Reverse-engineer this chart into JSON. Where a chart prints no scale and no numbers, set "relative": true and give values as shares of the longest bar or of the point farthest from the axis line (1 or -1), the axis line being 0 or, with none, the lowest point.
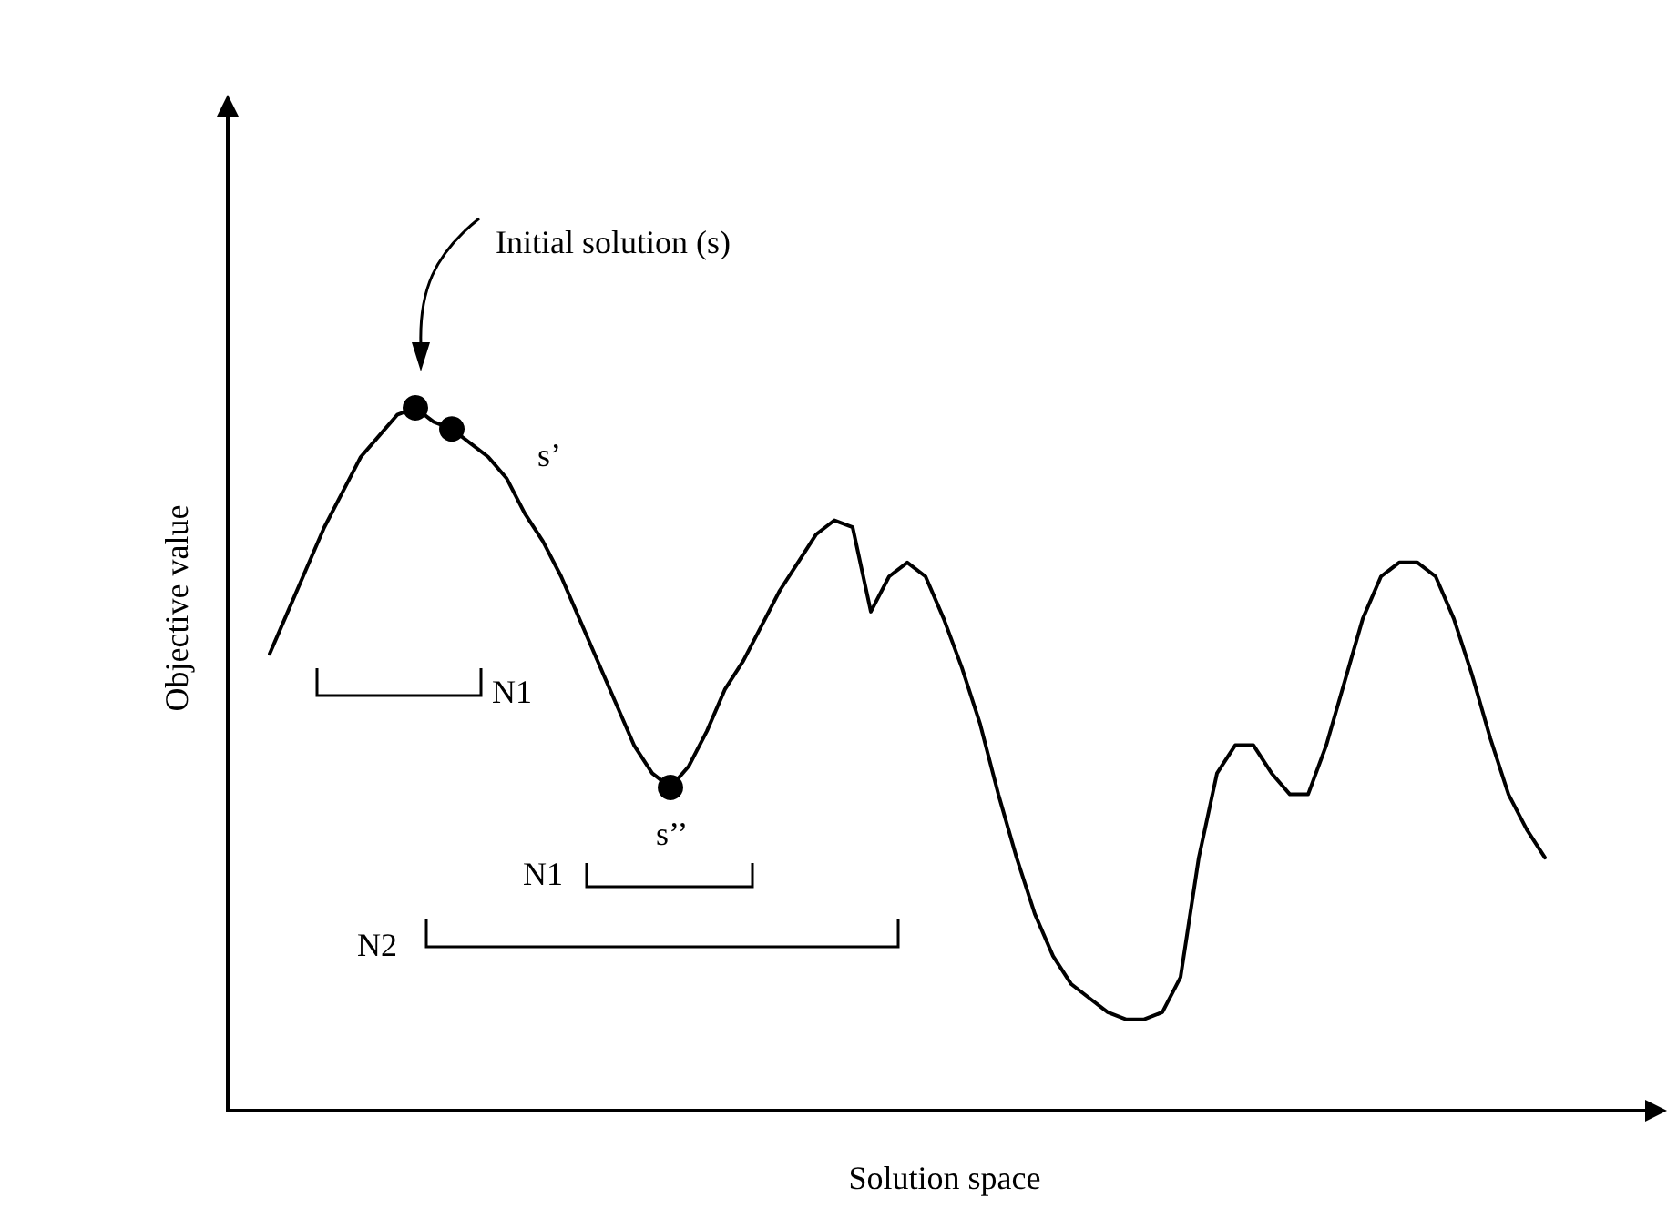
{
  "chart_data": {
    "type": "line",
    "relative": true,
    "xlabel": "Solution space",
    "ylabel": "Objective value",
    "grid": false,
    "categories": [
      null,
      null,
      null,
      null,
      null,
      null,
      null,
      null,
      null,
      null,
      null,
      null,
      null,
      null,
      null,
      null,
      null,
      null,
      null,
      null,
      null,
      null,
      null,
      null,
      null,
      null,
      null,
      null,
      null,
      null,
      null,
      null,
      null,
      null,
      null,
      null,
      null,
      null,
      null,
      null,
      null,
      null,
      null,
      null,
      null,
      null,
      null,
      null,
      null,
      null,
      null,
      null,
      null,
      null,
      null,
      null,
      null,
      null,
      null,
      null,
      null,
      null,
      null,
      null,
      null,
      null,
      null,
      null,
      null,
      null,
      null
    ],
    "series": [
      {
        "color": "#000000",
        "marker": "none",
        "line_style": "solid",
        "values": [
          0.65,
          0.71,
          0.77,
          0.83,
          0.88,
          0.93,
          0.96,
          0.99,
          1.0,
          0.98,
          0.97,
          0.95,
          0.93,
          0.9,
          0.85,
          0.81,
          0.76,
          0.7,
          0.64,
          0.58,
          0.52,
          0.48,
          0.46,
          0.49,
          0.54,
          0.6,
          0.64,
          0.69,
          0.74,
          0.78,
          0.82,
          0.84,
          0.83,
          0.71,
          0.76,
          0.78,
          0.76,
          0.7,
          0.63,
          0.55,
          0.45,
          0.36,
          0.28,
          0.22,
          0.18,
          0.16,
          0.14,
          0.13,
          0.13,
          0.14,
          0.19,
          0.36,
          0.48,
          0.52,
          0.52,
          0.48,
          0.45,
          0.45,
          0.52,
          0.61,
          0.7,
          0.76,
          0.78,
          0.78,
          0.76,
          0.7,
          0.62,
          0.53,
          0.45,
          0.4,
          0.36
        ]
      },
      {
        "color": "#000000",
        "marker": "circle",
        "values": [
          null,
          null,
          null,
          null,
          null,
          null,
          null,
          null,
          1.0,
          null,
          0.97,
          null,
          null,
          null,
          null,
          null,
          null,
          null,
          null,
          null,
          null,
          null,
          0.46,
          null,
          null,
          null,
          null,
          null,
          null,
          null,
          null,
          null,
          null,
          null,
          null,
          null,
          null,
          null,
          null,
          null,
          null,
          null,
          null,
          null,
          null,
          null,
          null,
          null,
          null,
          null,
          null,
          null,
          null,
          null,
          null,
          null,
          null,
          null,
          null,
          null,
          null,
          null,
          null,
          null,
          null,
          null,
          null,
          null,
          null,
          null,
          null
        ]
      }
    ],
    "annotations": [
      "Initial solution (s)",
      "s’",
      "N1",
      "s’’",
      "N1",
      "N2"
    ]
  }
}
